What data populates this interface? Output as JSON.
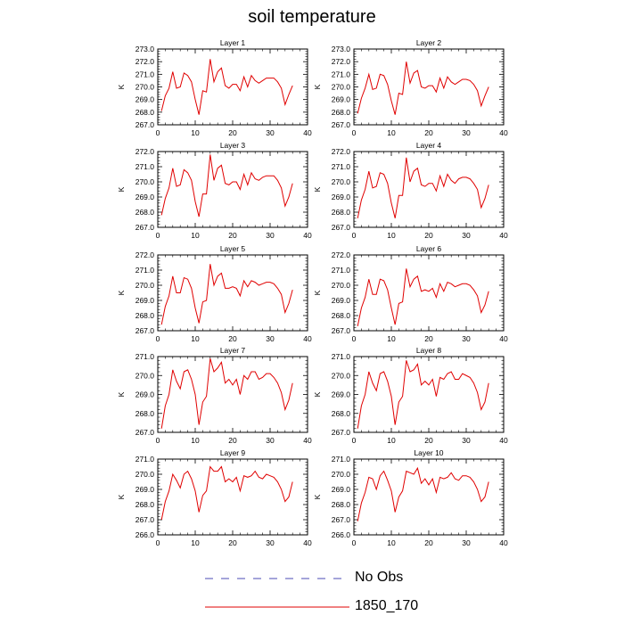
{
  "title": "soil temperature",
  "colors": {
    "obs": "#4b4bb4",
    "model": "#e00000",
    "frame": "#000000"
  },
  "legend": {
    "items": [
      {
        "label": "No Obs",
        "style": "dashed",
        "color": "#4b4bb4"
      },
      {
        "label": "1850_170",
        "style": "solid",
        "color": "#e00000"
      }
    ]
  },
  "chart_data": [
    {
      "type": "line",
      "title": "Layer 1",
      "ylabel": "K",
      "xlim": [
        0,
        40
      ],
      "ylim": [
        267,
        273
      ],
      "xticks": [
        "0",
        "10",
        "20",
        "30",
        "40"
      ],
      "yticks": [
        "267.0",
        "268.0",
        "269.0",
        "270.0",
        "271.0",
        "272.0",
        "273.0"
      ],
      "series": [
        {
          "name": "1850_170",
          "x": [
            1,
            2,
            3,
            4,
            5,
            6,
            7,
            8,
            9,
            10,
            11,
            12,
            13,
            14,
            15,
            16,
            17,
            18,
            19,
            20,
            21,
            22,
            23,
            24,
            25,
            26,
            27,
            28,
            29,
            30,
            31,
            32,
            33,
            34,
            35,
            36
          ],
          "values": [
            268.1,
            269.3,
            269.9,
            271.2,
            269.9,
            270.0,
            271.1,
            270.9,
            270.4,
            269.0,
            267.8,
            269.7,
            269.6,
            272.2,
            270.4,
            271.2,
            271.5,
            270.1,
            269.9,
            270.2,
            270.2,
            269.7,
            270.8,
            270.0,
            270.9,
            270.5,
            270.3,
            270.5,
            270.7,
            270.7,
            270.7,
            270.4,
            269.9,
            268.6,
            269.4,
            270.1
          ]
        }
      ]
    },
    {
      "type": "line",
      "title": "Layer 2",
      "ylabel": "K",
      "xlim": [
        0,
        40
      ],
      "ylim": [
        267,
        273
      ],
      "xticks": [
        "0",
        "10",
        "20",
        "30",
        "40"
      ],
      "yticks": [
        "267.0",
        "268.0",
        "269.0",
        "270.0",
        "271.0",
        "272.0",
        "273.0"
      ],
      "series": [
        {
          "name": "1850_170",
          "x": [
            1,
            2,
            3,
            4,
            5,
            6,
            7,
            8,
            9,
            10,
            11,
            12,
            13,
            14,
            15,
            16,
            17,
            18,
            19,
            20,
            21,
            22,
            23,
            24,
            25,
            26,
            27,
            28,
            29,
            30,
            31,
            32,
            33,
            34,
            35,
            36
          ],
          "values": [
            267.9,
            269.1,
            269.9,
            271.0,
            269.8,
            269.9,
            271.0,
            270.9,
            270.2,
            268.9,
            267.8,
            269.5,
            269.4,
            272.0,
            270.3,
            271.1,
            271.3,
            270.0,
            269.9,
            270.1,
            270.1,
            269.6,
            270.7,
            269.9,
            270.8,
            270.4,
            270.2,
            270.4,
            270.6,
            270.6,
            270.5,
            270.2,
            269.7,
            268.5,
            269.3,
            270.0
          ]
        }
      ]
    },
    {
      "type": "line",
      "title": "Layer 3",
      "ylabel": "K",
      "xlim": [
        0,
        40
      ],
      "ylim": [
        267,
        272
      ],
      "xticks": [
        "0",
        "10",
        "20",
        "30",
        "40"
      ],
      "yticks": [
        "267.0",
        "268.0",
        "269.0",
        "270.0",
        "271.0",
        "272.0"
      ],
      "series": [
        {
          "name": "1850_170",
          "x": [
            1,
            2,
            3,
            4,
            5,
            6,
            7,
            8,
            9,
            10,
            11,
            12,
            13,
            14,
            15,
            16,
            17,
            18,
            19,
            20,
            21,
            22,
            23,
            24,
            25,
            26,
            27,
            28,
            29,
            30,
            31,
            32,
            33,
            34,
            35,
            36
          ],
          "values": [
            267.8,
            268.9,
            269.6,
            270.9,
            269.7,
            269.8,
            270.8,
            270.6,
            270.1,
            268.7,
            267.7,
            269.2,
            269.2,
            271.8,
            270.1,
            270.9,
            271.1,
            269.9,
            269.8,
            270.0,
            270.0,
            269.5,
            270.5,
            269.8,
            270.6,
            270.2,
            270.1,
            270.3,
            270.4,
            270.4,
            270.4,
            270.1,
            269.6,
            268.4,
            269.0,
            269.9
          ]
        }
      ]
    },
    {
      "type": "line",
      "title": "Layer 4",
      "ylabel": "K",
      "xlim": [
        0,
        40
      ],
      "ylim": [
        267,
        272
      ],
      "xticks": [
        "0",
        "10",
        "20",
        "30",
        "40"
      ],
      "yticks": [
        "267.0",
        "268.0",
        "269.0",
        "270.0",
        "271.0",
        "272.0"
      ],
      "series": [
        {
          "name": "1850_170",
          "x": [
            1,
            2,
            3,
            4,
            5,
            6,
            7,
            8,
            9,
            10,
            11,
            12,
            13,
            14,
            15,
            16,
            17,
            18,
            19,
            20,
            21,
            22,
            23,
            24,
            25,
            26,
            27,
            28,
            29,
            30,
            31,
            32,
            33,
            34,
            35,
            36
          ],
          "values": [
            267.6,
            268.8,
            269.5,
            270.7,
            269.6,
            269.7,
            270.6,
            270.5,
            269.9,
            268.6,
            267.6,
            269.1,
            269.1,
            271.6,
            270.0,
            270.7,
            270.9,
            269.8,
            269.7,
            269.9,
            269.9,
            269.4,
            270.4,
            269.7,
            270.5,
            270.1,
            269.9,
            270.2,
            270.3,
            270.3,
            270.2,
            269.9,
            269.5,
            268.3,
            268.9,
            269.8
          ]
        }
      ]
    },
    {
      "type": "line",
      "title": "Layer 5",
      "ylabel": "K",
      "xlim": [
        0,
        40
      ],
      "ylim": [
        267,
        272
      ],
      "xticks": [
        "0",
        "10",
        "20",
        "30",
        "40"
      ],
      "yticks": [
        "267.0",
        "268.0",
        "269.0",
        "270.0",
        "271.0",
        "272.0"
      ],
      "series": [
        {
          "name": "1850_170",
          "x": [
            1,
            2,
            3,
            4,
            5,
            6,
            7,
            8,
            9,
            10,
            11,
            12,
            13,
            14,
            15,
            16,
            17,
            18,
            19,
            20,
            21,
            22,
            23,
            24,
            25,
            26,
            27,
            28,
            29,
            30,
            31,
            32,
            33,
            34,
            35,
            36
          ],
          "values": [
            267.4,
            268.6,
            269.3,
            270.6,
            269.5,
            269.5,
            270.5,
            270.4,
            269.8,
            268.5,
            267.5,
            268.9,
            269.0,
            271.4,
            270.0,
            270.6,
            270.8,
            269.8,
            269.8,
            269.9,
            269.8,
            269.3,
            270.3,
            269.9,
            270.3,
            270.2,
            270.0,
            270.1,
            270.2,
            270.2,
            270.1,
            269.8,
            269.4,
            268.2,
            268.8,
            269.7
          ]
        }
      ]
    },
    {
      "type": "line",
      "title": "Layer 6",
      "ylabel": "K",
      "xlim": [
        0,
        40
      ],
      "ylim": [
        267,
        272
      ],
      "xticks": [
        "0",
        "10",
        "20",
        "30",
        "40"
      ],
      "yticks": [
        "267.0",
        "268.0",
        "269.0",
        "270.0",
        "271.0",
        "272.0"
      ],
      "series": [
        {
          "name": "1850_170",
          "x": [
            1,
            2,
            3,
            4,
            5,
            6,
            7,
            8,
            9,
            10,
            11,
            12,
            13,
            14,
            15,
            16,
            17,
            18,
            19,
            20,
            21,
            22,
            23,
            24,
            25,
            26,
            27,
            28,
            29,
            30,
            31,
            32,
            33,
            34,
            35,
            36
          ],
          "values": [
            267.3,
            268.5,
            269.2,
            270.4,
            269.4,
            269.4,
            270.4,
            270.3,
            269.7,
            268.5,
            267.4,
            268.8,
            268.9,
            271.1,
            269.9,
            270.4,
            270.6,
            269.6,
            269.7,
            269.6,
            269.8,
            269.2,
            270.1,
            269.6,
            270.2,
            270.1,
            269.9,
            270.0,
            270.1,
            270.1,
            270.0,
            269.7,
            269.3,
            268.2,
            268.7,
            269.6
          ]
        }
      ]
    },
    {
      "type": "line",
      "title": "Layer 7",
      "ylabel": "K",
      "xlim": [
        0,
        40
      ],
      "ylim": [
        267,
        271
      ],
      "xticks": [
        "0",
        "10",
        "20",
        "30",
        "40"
      ],
      "yticks": [
        "267.0",
        "268.0",
        "269.0",
        "270.0",
        "271.0"
      ],
      "series": [
        {
          "name": "1850_170",
          "x": [
            1,
            2,
            3,
            4,
            5,
            6,
            7,
            8,
            9,
            10,
            11,
            12,
            13,
            14,
            15,
            16,
            17,
            18,
            19,
            20,
            21,
            22,
            23,
            24,
            25,
            26,
            27,
            28,
            29,
            30,
            31,
            32,
            33,
            34,
            35,
            36
          ],
          "values": [
            267.2,
            268.4,
            269.0,
            270.3,
            269.7,
            269.3,
            270.2,
            270.3,
            269.8,
            269.0,
            267.4,
            268.6,
            268.9,
            270.9,
            270.2,
            270.4,
            270.7,
            269.6,
            269.8,
            269.5,
            269.8,
            269.0,
            270.0,
            269.8,
            270.2,
            270.2,
            269.8,
            269.9,
            270.1,
            270.1,
            269.9,
            269.6,
            269.1,
            268.2,
            268.7,
            269.6
          ]
        }
      ]
    },
    {
      "type": "line",
      "title": "Layer 8",
      "ylabel": "K",
      "xlim": [
        0,
        40
      ],
      "ylim": [
        267,
        271
      ],
      "xticks": [
        "0",
        "10",
        "20",
        "30",
        "40"
      ],
      "yticks": [
        "267.0",
        "268.0",
        "269.0",
        "270.0",
        "271.0"
      ],
      "series": [
        {
          "name": "1850_170",
          "x": [
            1,
            2,
            3,
            4,
            5,
            6,
            7,
            8,
            9,
            10,
            11,
            12,
            13,
            14,
            15,
            16,
            17,
            18,
            19,
            20,
            21,
            22,
            23,
            24,
            25,
            26,
            27,
            28,
            29,
            30,
            31,
            32,
            33,
            34,
            35,
            36
          ],
          "values": [
            267.2,
            268.4,
            269.0,
            270.2,
            269.6,
            269.2,
            270.1,
            270.2,
            269.7,
            268.9,
            267.4,
            268.6,
            268.9,
            270.8,
            270.2,
            270.3,
            270.6,
            269.5,
            269.7,
            269.5,
            269.8,
            268.9,
            269.9,
            269.8,
            270.1,
            270.2,
            269.8,
            269.8,
            270.1,
            270.0,
            269.9,
            269.6,
            269.1,
            268.2,
            268.6,
            269.6
          ]
        }
      ]
    },
    {
      "type": "line",
      "title": "Layer 9",
      "ylabel": "K",
      "xlim": [
        0,
        40
      ],
      "ylim": [
        266,
        271
      ],
      "xticks": [
        "0",
        "10",
        "20",
        "30",
        "40"
      ],
      "yticks": [
        "266.0",
        "267.0",
        "268.0",
        "269.0",
        "270.0",
        "271.0"
      ],
      "series": [
        {
          "name": "1850_170",
          "x": [
            1,
            2,
            3,
            4,
            5,
            6,
            7,
            8,
            9,
            10,
            11,
            12,
            13,
            14,
            15,
            16,
            17,
            18,
            19,
            20,
            21,
            22,
            23,
            24,
            25,
            26,
            27,
            28,
            29,
            30,
            31,
            32,
            33,
            34,
            35,
            36
          ],
          "values": [
            267.0,
            268.2,
            268.9,
            270.0,
            269.6,
            269.1,
            270.0,
            270.2,
            269.7,
            268.9,
            267.5,
            268.6,
            268.9,
            270.5,
            270.2,
            270.2,
            270.5,
            269.5,
            269.7,
            269.5,
            269.8,
            268.9,
            269.9,
            269.8,
            269.9,
            270.2,
            269.8,
            269.7,
            270.0,
            269.9,
            269.8,
            269.5,
            269.0,
            268.2,
            268.5,
            269.5
          ]
        }
      ]
    },
    {
      "type": "line",
      "title": "Layer 10",
      "ylabel": "K",
      "xlim": [
        0,
        40
      ],
      "ylim": [
        266,
        271
      ],
      "xticks": [
        "0",
        "10",
        "20",
        "30",
        "40"
      ],
      "yticks": [
        "266.0",
        "267.0",
        "268.0",
        "269.0",
        "270.0",
        "271.0"
      ],
      "series": [
        {
          "name": "1850_170",
          "x": [
            1,
            2,
            3,
            4,
            5,
            6,
            7,
            8,
            9,
            10,
            11,
            12,
            13,
            14,
            15,
            16,
            17,
            18,
            19,
            20,
            21,
            22,
            23,
            24,
            25,
            26,
            27,
            28,
            29,
            30,
            31,
            32,
            33,
            34,
            35,
            36
          ],
          "values": [
            266.9,
            268.1,
            268.8,
            269.8,
            269.7,
            269.0,
            269.9,
            270.2,
            269.6,
            268.9,
            267.5,
            268.5,
            268.9,
            270.2,
            270.1,
            270.0,
            270.4,
            269.4,
            269.7,
            269.3,
            269.7,
            268.8,
            269.8,
            269.7,
            269.8,
            270.1,
            269.7,
            269.6,
            269.9,
            269.9,
            269.8,
            269.5,
            269.0,
            268.2,
            268.5,
            269.5
          ]
        }
      ]
    }
  ]
}
